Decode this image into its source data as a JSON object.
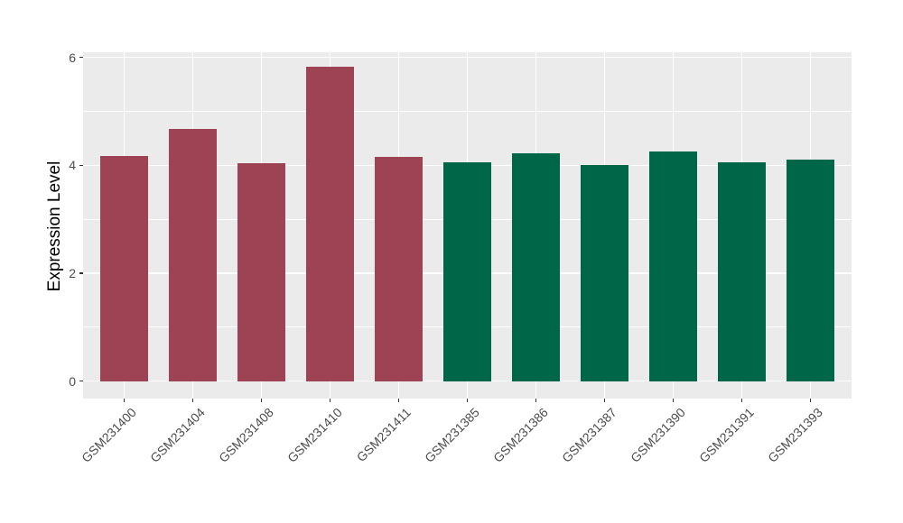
{
  "chart_data": {
    "type": "bar",
    "title": "",
    "xlabel": "",
    "ylabel": "Expression Level",
    "categories": [
      "GSM231400",
      "GSM231404",
      "GSM231408",
      "GSM231410",
      "GSM231411",
      "GSM231385",
      "GSM231386",
      "GSM231387",
      "GSM231390",
      "GSM231391",
      "GSM231393"
    ],
    "values": [
      4.17,
      4.68,
      4.04,
      5.82,
      4.16,
      4.05,
      4.22,
      4.01,
      4.26,
      4.06,
      4.11
    ],
    "bar_colors": [
      "#9E4353",
      "#9E4353",
      "#9E4353",
      "#9E4353",
      "#9E4353",
      "#006648",
      "#006648",
      "#006648",
      "#006648",
      "#006648",
      "#006648"
    ],
    "yticks": [
      "0",
      "2",
      "4",
      "6"
    ],
    "ytick_values": [
      0,
      2,
      4,
      6
    ],
    "yminor_values": [
      1,
      3,
      5
    ],
    "ylim": [
      0,
      6.1
    ],
    "legend_position": "none",
    "grid": "on",
    "panel_bg": "#EBEBEB",
    "grid_color": "#FFFFFF",
    "tick_color": "#333333",
    "tick_label_color": "#4D4D4D",
    "axis_title_color": "#000000"
  }
}
